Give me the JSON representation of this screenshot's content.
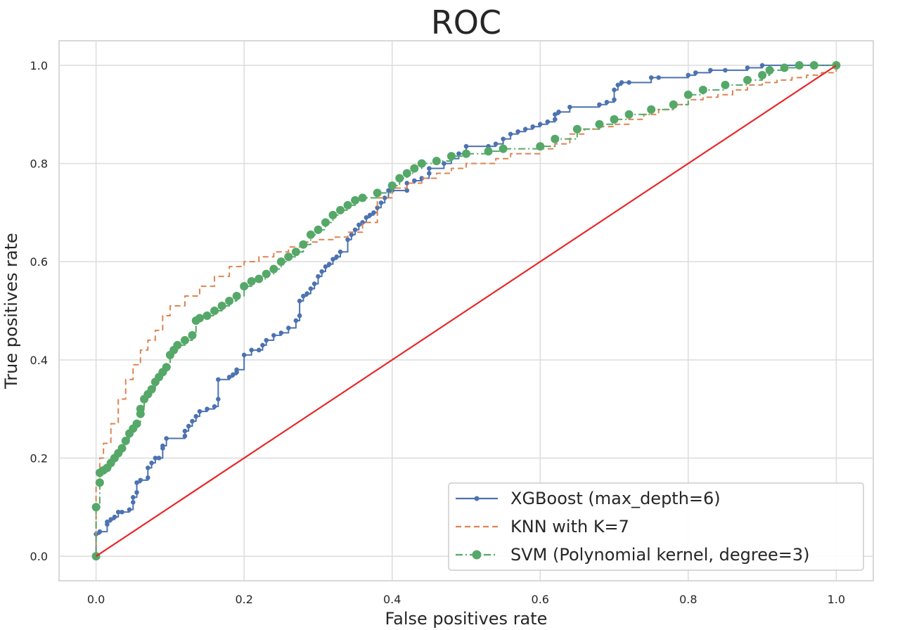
{
  "chart_data": {
    "type": "line",
    "title": "ROC",
    "xlabel": "False positives rate",
    "ylabel": "True positives rate",
    "xlim": [
      -0.05,
      1.05
    ],
    "ylim": [
      -0.05,
      1.05
    ],
    "xticks": [
      "0.0",
      "0.2",
      "0.4",
      "0.6",
      "0.8",
      "1.0"
    ],
    "yticks": [
      "0.0",
      "0.2",
      "0.4",
      "0.6",
      "0.8",
      "1.0"
    ],
    "grid": true,
    "legend_position": "lower-right",
    "series": [
      {
        "name": "XGBoost (max_depth=6)",
        "color": "#4c72b0",
        "line_style": "solid",
        "marker": "small-dot",
        "x": [
          0.0,
          0.0,
          0.005,
          0.005,
          0.015,
          0.015,
          0.02,
          0.025,
          0.03,
          0.035,
          0.045,
          0.05,
          0.05,
          0.055,
          0.055,
          0.06,
          0.07,
          0.07,
          0.075,
          0.08,
          0.085,
          0.09,
          0.09,
          0.095,
          0.12,
          0.12,
          0.125,
          0.13,
          0.135,
          0.14,
          0.15,
          0.16,
          0.165,
          0.165,
          0.18,
          0.185,
          0.19,
          0.19,
          0.2,
          0.21,
          0.22,
          0.225,
          0.23,
          0.24,
          0.25,
          0.26,
          0.27,
          0.275,
          0.275,
          0.28,
          0.285,
          0.29,
          0.295,
          0.3,
          0.305,
          0.31,
          0.315,
          0.32,
          0.325,
          0.33,
          0.34,
          0.345,
          0.35,
          0.355,
          0.36,
          0.365,
          0.37,
          0.375,
          0.38,
          0.385,
          0.39,
          0.395,
          0.4,
          0.42,
          0.42,
          0.43,
          0.44,
          0.45,
          0.45,
          0.47,
          0.48,
          0.49,
          0.5,
          0.53,
          0.54,
          0.55,
          0.56,
          0.57,
          0.58,
          0.59,
          0.6,
          0.61,
          0.62,
          0.62,
          0.625,
          0.64,
          0.68,
          0.69,
          0.7,
          0.7,
          0.705,
          0.71,
          0.72,
          0.75,
          0.76,
          0.8,
          0.81,
          0.83,
          0.85,
          0.88,
          0.9,
          0.95,
          1.0
        ],
        "y": [
          0.0,
          0.045,
          0.05,
          0.05,
          0.065,
          0.07,
          0.075,
          0.08,
          0.09,
          0.09,
          0.095,
          0.11,
          0.12,
          0.13,
          0.15,
          0.155,
          0.16,
          0.18,
          0.19,
          0.2,
          0.2,
          0.22,
          0.225,
          0.24,
          0.245,
          0.255,
          0.265,
          0.275,
          0.285,
          0.295,
          0.3,
          0.305,
          0.32,
          0.36,
          0.365,
          0.37,
          0.375,
          0.38,
          0.41,
          0.42,
          0.42,
          0.43,
          0.44,
          0.45,
          0.455,
          0.465,
          0.48,
          0.49,
          0.52,
          0.53,
          0.535,
          0.545,
          0.555,
          0.57,
          0.58,
          0.59,
          0.595,
          0.605,
          0.61,
          0.62,
          0.645,
          0.655,
          0.665,
          0.675,
          0.68,
          0.69,
          0.695,
          0.7,
          0.71,
          0.72,
          0.73,
          0.745,
          0.745,
          0.745,
          0.76,
          0.765,
          0.77,
          0.78,
          0.79,
          0.8,
          0.81,
          0.82,
          0.835,
          0.835,
          0.84,
          0.85,
          0.86,
          0.865,
          0.87,
          0.875,
          0.88,
          0.885,
          0.89,
          0.9,
          0.905,
          0.915,
          0.92,
          0.925,
          0.93,
          0.95,
          0.96,
          0.965,
          0.965,
          0.975,
          0.975,
          0.98,
          0.985,
          0.99,
          0.99,
          0.995,
          1.0,
          1.0,
          1.0
        ]
      },
      {
        "name": "KNN with K=7",
        "color": "#dd8452",
        "line_style": "dashed",
        "marker": "none",
        "x": [
          0.0,
          0.0,
          0.005,
          0.01,
          0.02,
          0.03,
          0.04,
          0.05,
          0.06,
          0.07,
          0.08,
          0.09,
          0.1,
          0.12,
          0.14,
          0.16,
          0.18,
          0.2,
          0.22,
          0.24,
          0.26,
          0.28,
          0.3,
          0.32,
          0.34,
          0.36,
          0.38,
          0.4,
          0.42,
          0.44,
          0.46,
          0.48,
          0.5,
          0.52,
          0.54,
          0.56,
          0.58,
          0.6,
          0.62,
          0.64,
          0.66,
          0.68,
          0.7,
          0.72,
          0.74,
          0.76,
          0.78,
          0.8,
          0.82,
          0.84,
          0.86,
          0.88,
          0.9,
          0.92,
          0.94,
          0.96,
          0.98,
          1.0
        ],
        "y": [
          0.0,
          0.15,
          0.2,
          0.23,
          0.27,
          0.32,
          0.36,
          0.39,
          0.42,
          0.44,
          0.46,
          0.49,
          0.51,
          0.53,
          0.55,
          0.57,
          0.59,
          0.6,
          0.61,
          0.62,
          0.63,
          0.64,
          0.645,
          0.65,
          0.66,
          0.68,
          0.73,
          0.75,
          0.76,
          0.77,
          0.78,
          0.79,
          0.8,
          0.8,
          0.81,
          0.82,
          0.82,
          0.83,
          0.84,
          0.86,
          0.87,
          0.875,
          0.88,
          0.89,
          0.9,
          0.91,
          0.92,
          0.93,
          0.935,
          0.94,
          0.95,
          0.96,
          0.965,
          0.97,
          0.975,
          0.98,
          0.985,
          1.0
        ]
      },
      {
        "name": "SVM (Polynomial kernel, degree=3)",
        "color": "#55a868",
        "line_style": "dashdot",
        "marker": "large-dot",
        "x": [
          0.0,
          0.0,
          0.005,
          0.005,
          0.01,
          0.015,
          0.02,
          0.025,
          0.03,
          0.035,
          0.04,
          0.045,
          0.05,
          0.055,
          0.06,
          0.06,
          0.065,
          0.07,
          0.075,
          0.08,
          0.085,
          0.09,
          0.095,
          0.1,
          0.105,
          0.11,
          0.12,
          0.13,
          0.135,
          0.14,
          0.15,
          0.16,
          0.17,
          0.18,
          0.19,
          0.2,
          0.21,
          0.22,
          0.23,
          0.24,
          0.25,
          0.26,
          0.27,
          0.28,
          0.29,
          0.3,
          0.31,
          0.32,
          0.33,
          0.34,
          0.35,
          0.36,
          0.38,
          0.4,
          0.41,
          0.42,
          0.43,
          0.44,
          0.46,
          0.48,
          0.5,
          0.53,
          0.55,
          0.6,
          0.62,
          0.65,
          0.68,
          0.7,
          0.72,
          0.75,
          0.78,
          0.8,
          0.82,
          0.85,
          0.88,
          0.9,
          0.91,
          0.93,
          0.95,
          0.97,
          1.0
        ],
        "y": [
          0.0,
          0.1,
          0.15,
          0.17,
          0.175,
          0.18,
          0.19,
          0.2,
          0.21,
          0.22,
          0.235,
          0.25,
          0.26,
          0.27,
          0.29,
          0.3,
          0.32,
          0.33,
          0.34,
          0.355,
          0.365,
          0.375,
          0.385,
          0.41,
          0.42,
          0.43,
          0.44,
          0.45,
          0.48,
          0.485,
          0.49,
          0.5,
          0.51,
          0.52,
          0.53,
          0.55,
          0.56,
          0.565,
          0.575,
          0.585,
          0.6,
          0.61,
          0.62,
          0.635,
          0.655,
          0.665,
          0.68,
          0.695,
          0.705,
          0.715,
          0.725,
          0.73,
          0.74,
          0.755,
          0.77,
          0.78,
          0.79,
          0.8,
          0.805,
          0.815,
          0.82,
          0.825,
          0.83,
          0.835,
          0.85,
          0.87,
          0.88,
          0.89,
          0.9,
          0.91,
          0.92,
          0.94,
          0.95,
          0.96,
          0.97,
          0.98,
          0.99,
          0.995,
          1.0,
          1.0,
          1.0
        ]
      },
      {
        "color": "#e8282a",
        "line_style": "solid",
        "marker": "none",
        "x": [
          0.0,
          1.0
        ],
        "y": [
          0.0,
          1.0
        ]
      }
    ]
  }
}
